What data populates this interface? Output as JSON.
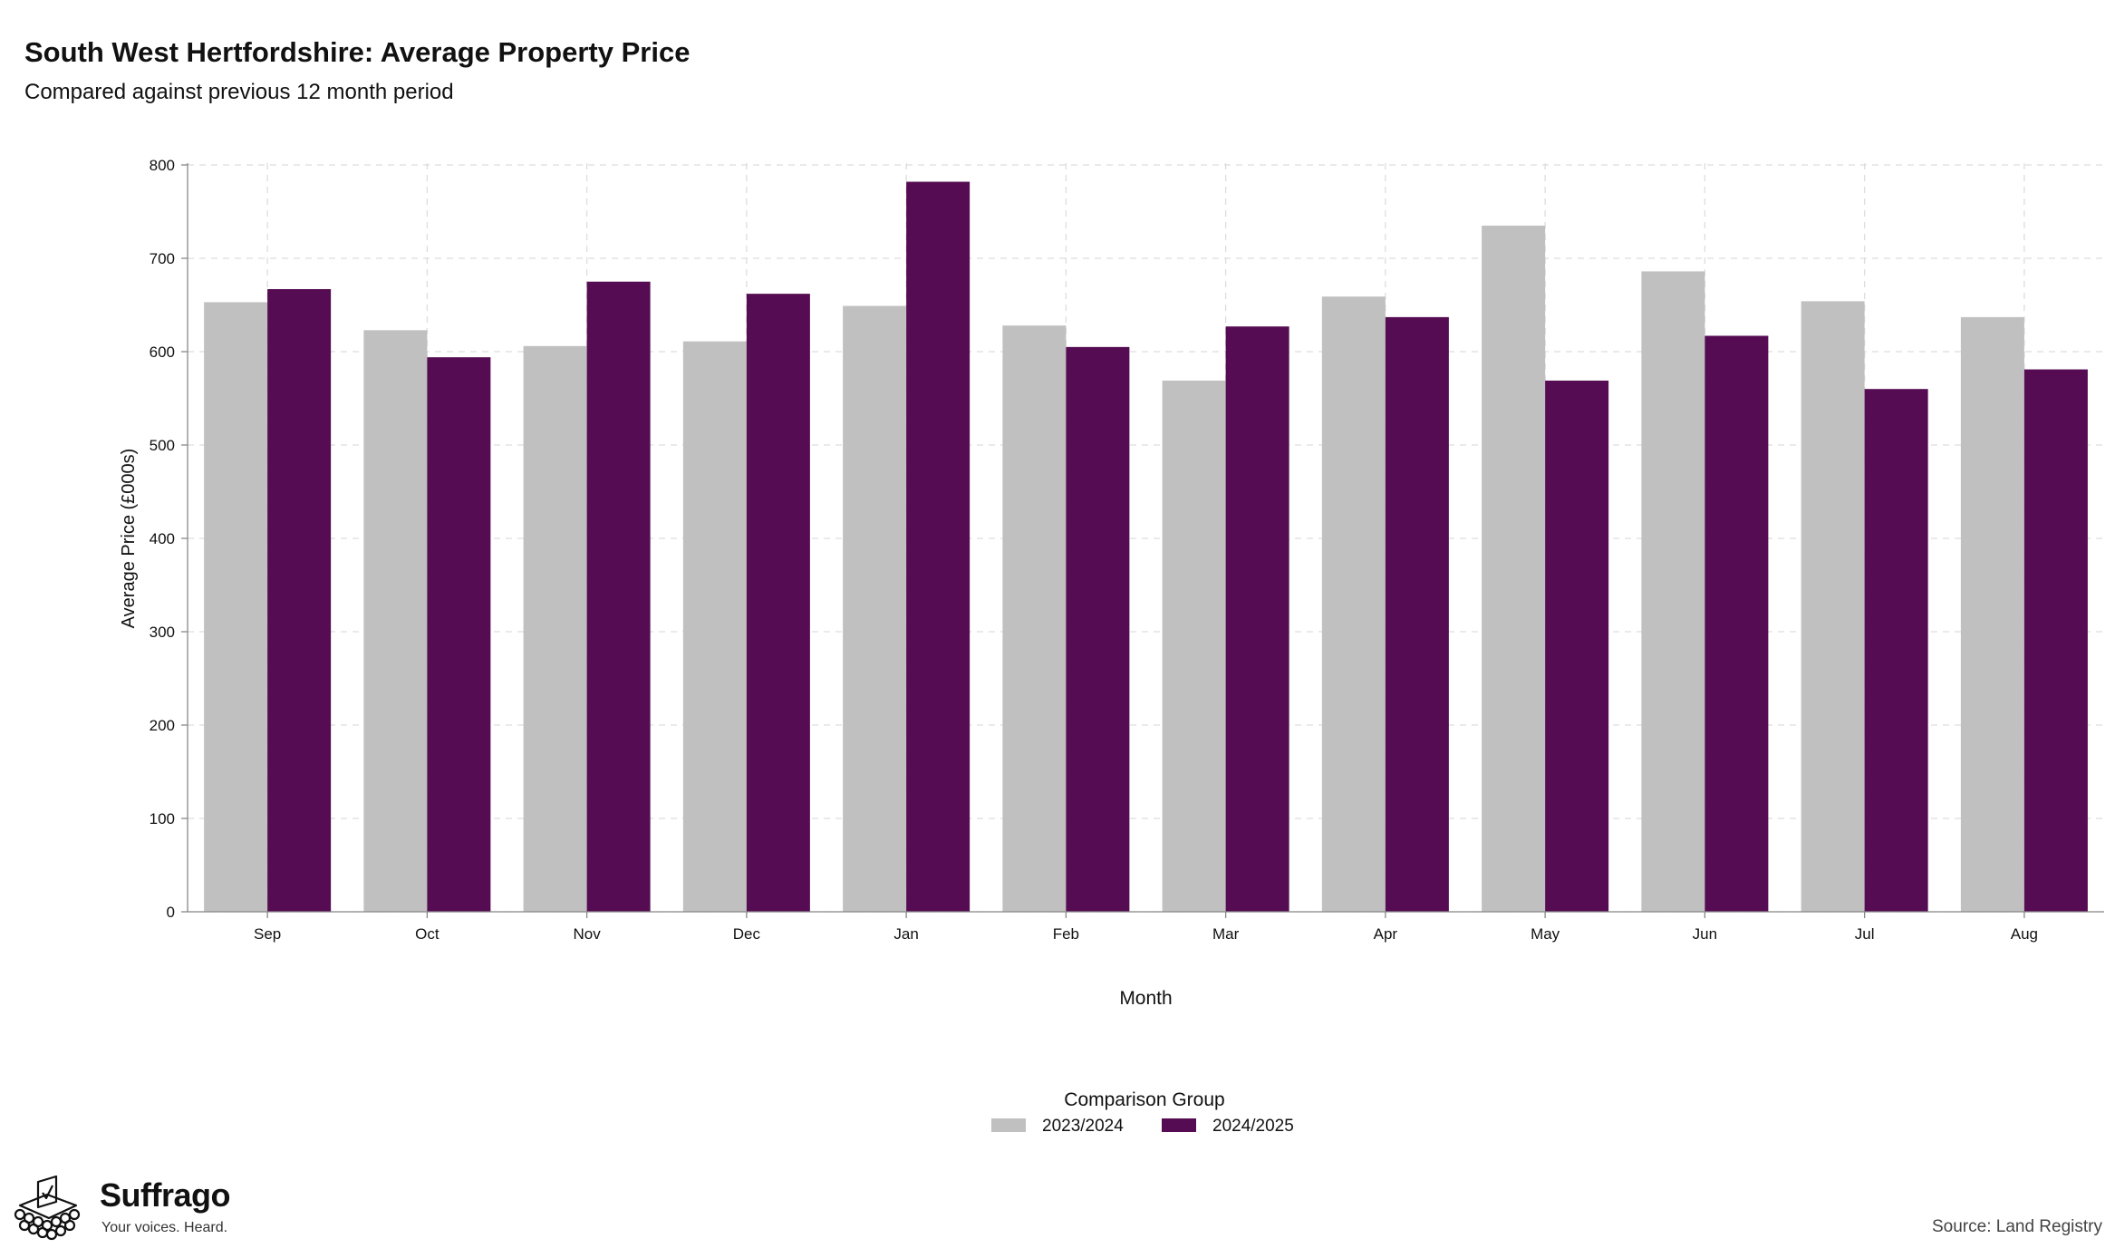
{
  "header": {
    "title": "South West Hertfordshire: Average Property Price",
    "subtitle": "Compared against previous 12 month period"
  },
  "footer": {
    "brand_name": "Suffrago",
    "brand_tagline": "Your voices. Heard.",
    "source": "Source: Land Registry"
  },
  "colors": {
    "series_prev": "#c0c0c0",
    "series_curr": "#550c52"
  },
  "chart_data": {
    "type": "bar",
    "xlabel": "Month",
    "ylabel": "Average Price (£000s)",
    "ylim": [
      0,
      800
    ],
    "yticks": [
      0,
      100,
      200,
      300,
      400,
      500,
      600,
      700,
      800
    ],
    "grid": true,
    "legend_title": "Comparison Group",
    "legend_position": "bottom-center",
    "categories": [
      "Sep",
      "Oct",
      "Nov",
      "Dec",
      "Jan",
      "Feb",
      "Mar",
      "Apr",
      "May",
      "Jun",
      "Jul",
      "Aug"
    ],
    "series": [
      {
        "name": "2023/2024",
        "values": [
          653,
          623,
          606,
          611,
          649,
          628,
          569,
          659,
          735,
          686,
          654,
          637
        ]
      },
      {
        "name": "2024/2025",
        "values": [
          667,
          594,
          675,
          662,
          782,
          605,
          627,
          637,
          569,
          617,
          560,
          581
        ]
      }
    ]
  }
}
